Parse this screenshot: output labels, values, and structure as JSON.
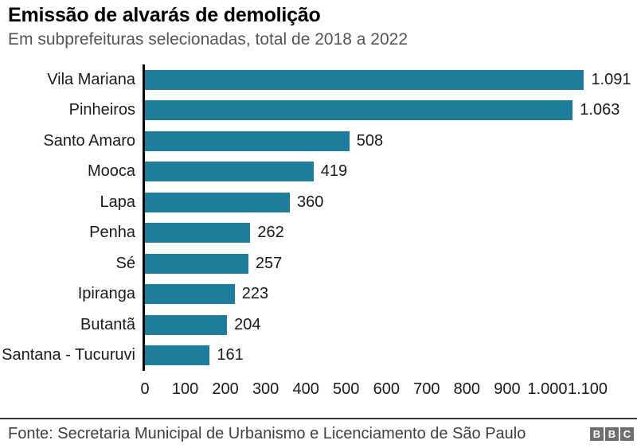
{
  "header": {
    "title": "Emissão de alvarás de demolição",
    "subtitle": "Em subprefeituras selecionadas, total de 2018 a 2022"
  },
  "chart_data": {
    "type": "bar",
    "orientation": "horizontal",
    "title": "Emissão de alvarás de demolição",
    "subtitle": "Em subprefeituras selecionadas, total de 2018 a 2022",
    "categories": [
      "Vila Mariana",
      "Pinheiros",
      "Santo Amaro",
      "Mooca",
      "Lapa",
      "Penha",
      "Sé",
      "Ipiranga",
      "Butantã",
      "Santana - Tucuruvi"
    ],
    "values": [
      1091,
      1063,
      508,
      419,
      360,
      262,
      257,
      223,
      204,
      161
    ],
    "value_labels": [
      "1.091",
      "1.063",
      "508",
      "419",
      "360",
      "262",
      "257",
      "223",
      "204",
      "161"
    ],
    "x_tick_values": [
      0,
      100,
      200,
      300,
      400,
      500,
      600,
      700,
      800,
      900,
      1000,
      1100
    ],
    "x_tick_labels": [
      "0",
      "100",
      "200",
      "300",
      "400",
      "500",
      "600",
      "700",
      "800",
      "900",
      "1.000",
      "1.100"
    ],
    "xlim": [
      0,
      1100
    ],
    "xlabel": "",
    "ylabel": "",
    "grid": false,
    "legend": false,
    "bar_color": "#1f7d9c",
    "axis_color": "#000000"
  },
  "footer": {
    "source": "Fonte: Secretaria Municipal de Urbanismo e Licenciamento de São Paulo",
    "logo_letters": [
      "B",
      "B",
      "C"
    ]
  }
}
